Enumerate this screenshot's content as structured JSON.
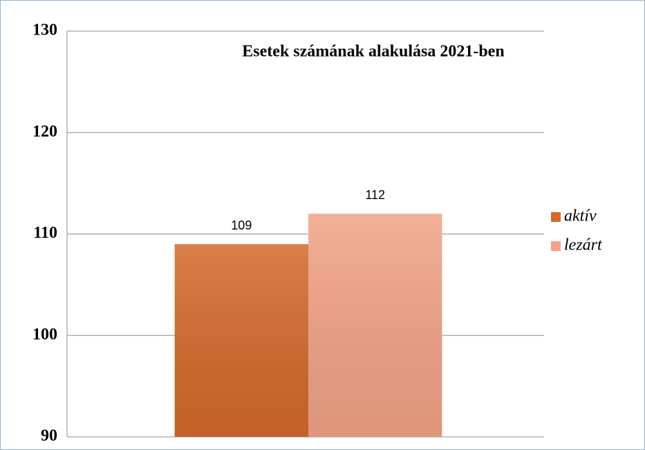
{
  "chart_data": {
    "type": "bar",
    "title": "Esetek számának alakulása 2021-ben",
    "categories": [
      null
    ],
    "series": [
      {
        "name": "aktív",
        "color": "#d4692a",
        "values": [
          109
        ]
      },
      {
        "name": "lezárt",
        "color": "#f2a386",
        "values": [
          112
        ]
      }
    ],
    "ylim": [
      90,
      130
    ],
    "yticks": [
      90,
      100,
      110,
      120,
      130
    ],
    "grid": true,
    "legend": "right"
  }
}
